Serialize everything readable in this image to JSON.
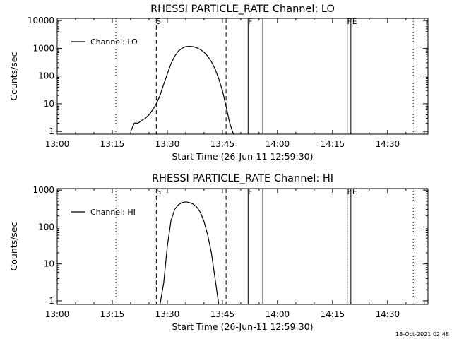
{
  "footer": {
    "date_stamp": "18-Oct-2021 02:48"
  },
  "chart_data": [
    {
      "type": "line",
      "title": "RHESSI PARTICLE_RATE Channel: LO",
      "xlabel": "Start Time (26-Jun-11 12:59:30)",
      "ylabel": "Counts/sec",
      "yscale": "log",
      "xlim": [
        "13:00",
        "14:41"
      ],
      "ylim": [
        0.8,
        12000
      ],
      "x_ticks": [
        "13:00",
        "13:15",
        "13:30",
        "13:45",
        "14:00",
        "14:15",
        "14:30"
      ],
      "y_ticks": [
        "1",
        "10",
        "100",
        "1000",
        "10000"
      ],
      "legend": {
        "placement": "top-left",
        "entries": [
          "Channel: LO"
        ]
      },
      "series": [
        {
          "name": "Channel: LO",
          "x": [
            "13:20",
            "13:21",
            "13:22",
            "13:23",
            "13:24",
            "13:25",
            "13:26",
            "13:27",
            "13:28",
            "13:29",
            "13:30",
            "13:31",
            "13:32",
            "13:33",
            "13:34",
            "13:35",
            "13:36",
            "13:37",
            "13:38",
            "13:39",
            "13:40",
            "13:41",
            "13:42",
            "13:43",
            "13:44",
            "13:45",
            "13:46",
            "13:47",
            "13:48"
          ],
          "y": [
            1,
            2,
            2,
            2.5,
            3,
            4,
            6,
            10,
            20,
            50,
            120,
            280,
            520,
            800,
            1000,
            1150,
            1180,
            1150,
            1050,
            900,
            720,
            520,
            330,
            180,
            80,
            30,
            8,
            2,
            0.8
          ]
        }
      ],
      "markers": [
        {
          "label": "S",
          "x": "13:27",
          "style": "dashed"
        },
        {
          "label": "",
          "x": "13:46",
          "style": "dashed"
        },
        {
          "label": "",
          "x": "13:16",
          "style": "dotted"
        },
        {
          "label": "",
          "x": "14:19",
          "style": "dotted"
        },
        {
          "label": "",
          "x": "14:37",
          "style": "dotted"
        },
        {
          "label": "F",
          "x": "13:52",
          "style": "solid"
        },
        {
          "label": "",
          "x": "13:56",
          "style": "solid"
        },
        {
          "label": "F",
          "x": "14:19",
          "style": "solid"
        },
        {
          "label": "E",
          "x": "14:20",
          "style": "solid"
        }
      ]
    },
    {
      "type": "line",
      "title": "RHESSI PARTICLE_RATE Channel: HI",
      "xlabel": "Start Time (26-Jun-11 12:59:30)",
      "ylabel": "Counts/sec",
      "yscale": "log",
      "xlim": [
        "13:00",
        "14:41"
      ],
      "ylim": [
        0.8,
        1100
      ],
      "x_ticks": [
        "13:00",
        "13:15",
        "13:30",
        "13:45",
        "14:00",
        "14:15",
        "14:30"
      ],
      "y_ticks": [
        "1",
        "10",
        "100",
        "1000"
      ],
      "legend": {
        "placement": "top-left",
        "entries": [
          "Channel: HI"
        ]
      },
      "series": [
        {
          "name": "Channel: HI",
          "x": [
            "13:28",
            "13:29",
            "13:30",
            "13:31",
            "13:32",
            "13:33",
            "13:34",
            "13:35",
            "13:36",
            "13:37",
            "13:38",
            "13:39",
            "13:40",
            "13:41",
            "13:42",
            "13:43",
            "13:44"
          ],
          "y": [
            0.8,
            3,
            30,
            150,
            300,
            400,
            460,
            480,
            460,
            420,
            350,
            250,
            140,
            60,
            20,
            4,
            0.8
          ]
        }
      ],
      "markers": [
        {
          "label": "S",
          "x": "13:27",
          "style": "dashed"
        },
        {
          "label": "",
          "x": "13:46",
          "style": "dashed"
        },
        {
          "label": "",
          "x": "13:16",
          "style": "dotted"
        },
        {
          "label": "",
          "x": "14:19",
          "style": "dotted"
        },
        {
          "label": "",
          "x": "14:37",
          "style": "dotted"
        },
        {
          "label": "F",
          "x": "13:52",
          "style": "solid"
        },
        {
          "label": "",
          "x": "13:56",
          "style": "solid"
        },
        {
          "label": "F",
          "x": "14:19",
          "style": "solid"
        },
        {
          "label": "E",
          "x": "14:20",
          "style": "solid"
        }
      ]
    }
  ]
}
